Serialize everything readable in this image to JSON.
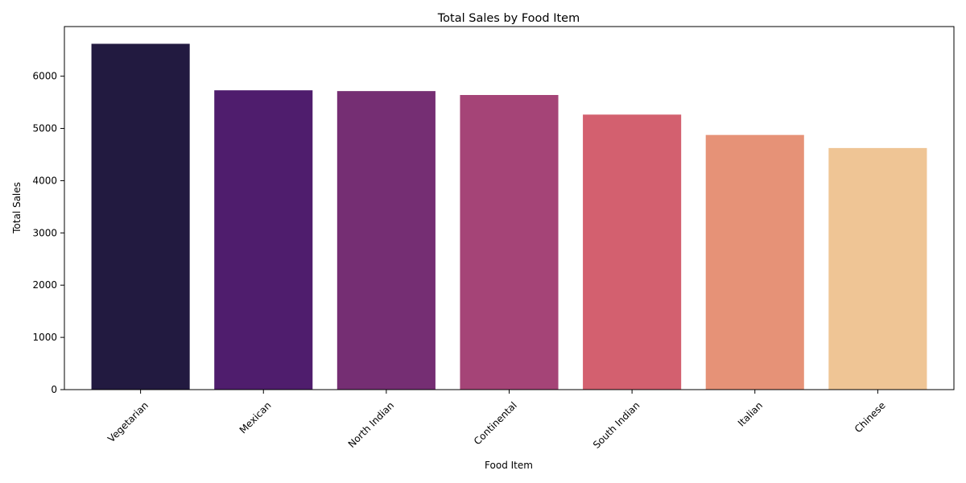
{
  "chart_data": {
    "type": "bar",
    "title": "Total Sales by Food Item",
    "xlabel": "Food Item",
    "ylabel": "Total Sales",
    "categories": [
      "Vegetarian",
      "Mexican",
      "North Indian",
      "Continental",
      "South Indian",
      "Italian",
      "Chinese"
    ],
    "values": [
      6620,
      5730,
      5715,
      5640,
      5265,
      4875,
      4625
    ],
    "ylim": [
      0,
      6950
    ],
    "yticks": [
      0,
      1000,
      2000,
      3000,
      4000,
      5000,
      6000
    ],
    "colors": [
      "#221a40",
      "#4f1d6d",
      "#752e73",
      "#a54477",
      "#d3606f",
      "#e69277",
      "#efc595"
    ],
    "grid": false,
    "legend": "none",
    "xtick_rotation": 45
  }
}
